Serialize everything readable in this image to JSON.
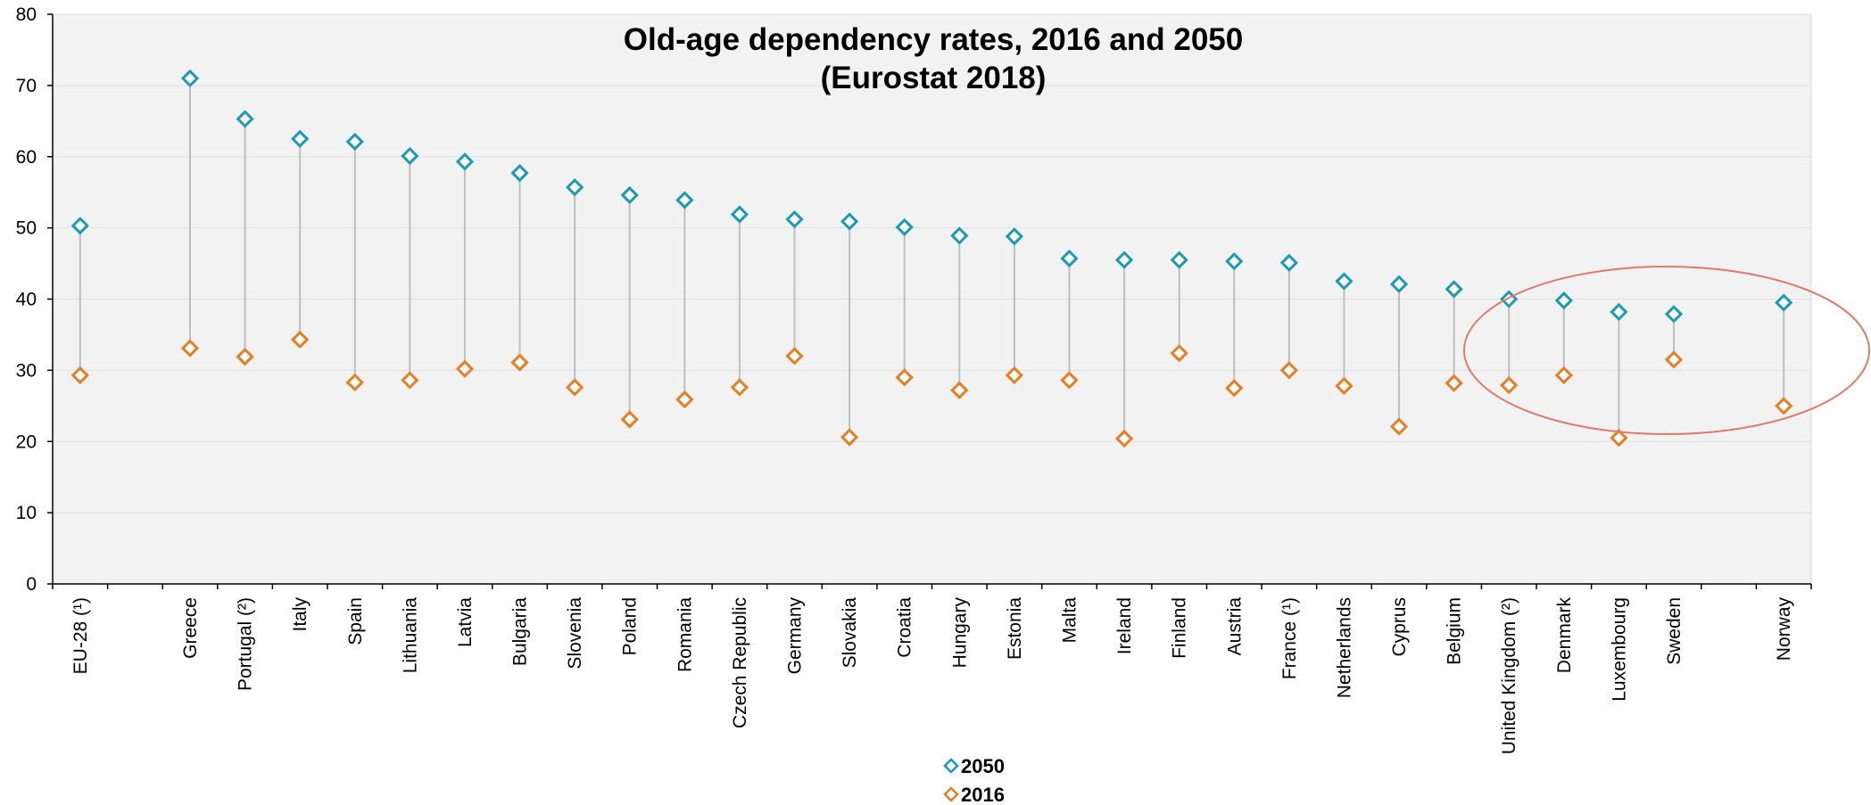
{
  "chart_data": {
    "type": "dot",
    "title": "Old-age dependency rates, 2016 and 2050",
    "subtitle": "(Eurostat 2018)",
    "categories": [
      "EU-28 (¹)",
      null,
      "Greece",
      "Portugal (²)",
      "Italy",
      "Spain",
      "Lithuania",
      "Latvia",
      "Bulgaria",
      "Slovenia",
      "Poland",
      "Romania",
      "Czech Republic",
      "Germany",
      "Slovakia",
      "Croatia",
      "Hungary",
      "Estonia",
      "Malta",
      "Ireland",
      "Finland",
      "Austria",
      "France (¹)",
      "Netherlands",
      "Cyprus",
      "Belgium",
      "United Kingdom (²)",
      "Denmark",
      "Luxembourg",
      "Sweden",
      null,
      "Norway"
    ],
    "series": [
      {
        "name": "2050",
        "color": "#1a9bb5",
        "values": [
          50.3,
          null,
          71.0,
          65.3,
          62.5,
          62.1,
          60.1,
          59.3,
          57.7,
          55.7,
          54.6,
          53.9,
          51.9,
          51.2,
          50.9,
          50.1,
          48.9,
          48.8,
          45.7,
          45.5,
          45.5,
          45.3,
          45.1,
          42.5,
          42.1,
          41.4,
          40.0,
          39.8,
          38.2,
          37.9,
          null,
          39.5
        ]
      },
      {
        "name": "2016",
        "color": "#e67e22",
        "values": [
          29.3,
          null,
          33.1,
          31.9,
          34.3,
          28.3,
          28.6,
          30.2,
          31.1,
          27.6,
          23.1,
          25.9,
          27.6,
          32.0,
          20.6,
          29.0,
          27.2,
          29.3,
          28.6,
          20.4,
          32.4,
          27.5,
          30.0,
          27.8,
          22.1,
          28.2,
          27.9,
          29.3,
          20.5,
          31.5,
          null,
          25.0
        ]
      }
    ],
    "ylim": [
      0,
      80
    ],
    "yticks": [
      0,
      10,
      20,
      30,
      40,
      50,
      60,
      70,
      80
    ],
    "grid": true
  }
}
